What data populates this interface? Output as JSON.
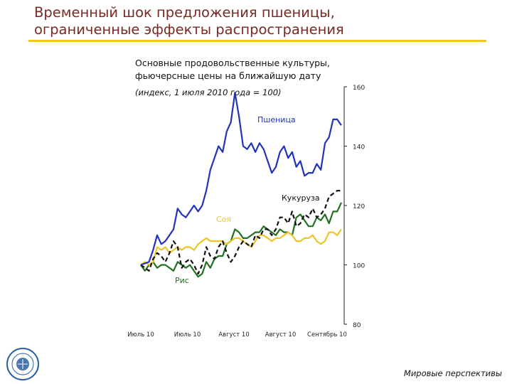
{
  "slide": {
    "title_line1": "Временный шок предложения пшеницы,",
    "title_line2": "ограниченные эффекты распространения",
    "footer": "Мировые перспективы",
    "accent_color": "#f2c718",
    "title_color": "#7a2a22",
    "logo_icon": "imf-seal-icon"
  },
  "chart_data": {
    "type": "line",
    "title_line1": "Основные продовольственные культуры,",
    "title_line2": "фьючерсные цены на ближайшую дату",
    "subtitle": "(индекс, 1 июля 2010 года = 100)",
    "ylim": [
      80,
      160
    ],
    "yticks": [
      "160",
      "140",
      "120",
      "100",
      "80"
    ],
    "x_tick_labels": [
      "Июль 10",
      "Июль 10",
      "Август 10",
      "Август 10",
      "Сентябрь 10"
    ],
    "axis_position": "right",
    "grid": false,
    "series": [
      {
        "name": "Пшеница",
        "color": "#2233bb",
        "dash": false,
        "values": [
          100,
          100.5,
          101,
          105,
          110,
          107,
          108,
          110,
          112,
          119,
          117,
          116,
          118,
          120,
          118,
          120,
          125,
          132,
          136,
          140,
          138,
          145,
          148,
          158,
          150,
          140,
          139,
          141,
          138,
          141,
          139,
          135,
          131,
          133,
          138,
          140,
          136,
          138,
          133,
          135,
          130,
          131,
          131,
          134,
          132,
          141,
          143,
          149,
          149,
          147
        ]
      },
      {
        "name": "Кукуруза",
        "color": "#111111",
        "dash": true,
        "values": [
          100,
          99,
          98,
          102,
          104,
          103,
          101,
          104,
          108,
          106,
          99,
          101,
          102,
          100,
          97,
          100,
          106,
          103,
          102,
          106,
          108,
          104,
          101,
          103,
          106,
          108,
          107,
          106,
          110,
          109,
          112,
          112,
          110,
          112,
          116,
          116,
          114,
          118,
          113,
          114,
          117,
          116,
          119,
          116,
          117,
          119,
          123,
          124,
          125,
          125
        ]
      },
      {
        "name": "Соя",
        "color": "#eec526",
        "dash": false,
        "values": [
          100,
          101,
          100,
          101,
          106,
          105,
          106,
          104,
          105,
          106,
          105,
          106,
          106,
          105,
          107,
          108,
          109,
          108,
          108,
          108,
          108,
          107,
          108,
          109,
          109,
          108,
          107,
          106,
          108,
          110,
          110,
          109,
          108,
          109,
          109,
          110,
          111,
          110,
          108,
          108,
          109,
          109,
          110,
          108,
          107,
          108,
          111,
          111,
          110,
          112
        ]
      },
      {
        "name": "Рис",
        "color": "#237022",
        "dash": false,
        "values": [
          100,
          98,
          100,
          101,
          99,
          100,
          100,
          99,
          98,
          101,
          100,
          99,
          100,
          98,
          96,
          97,
          101,
          99,
          102,
          103,
          103,
          107,
          108,
          112,
          111,
          109,
          109,
          110,
          111,
          111,
          113,
          112,
          111,
          110,
          112,
          111,
          111,
          110,
          116,
          117,
          115,
          113,
          113,
          116,
          115,
          117,
          114,
          118,
          118,
          121
        ]
      }
    ]
  }
}
